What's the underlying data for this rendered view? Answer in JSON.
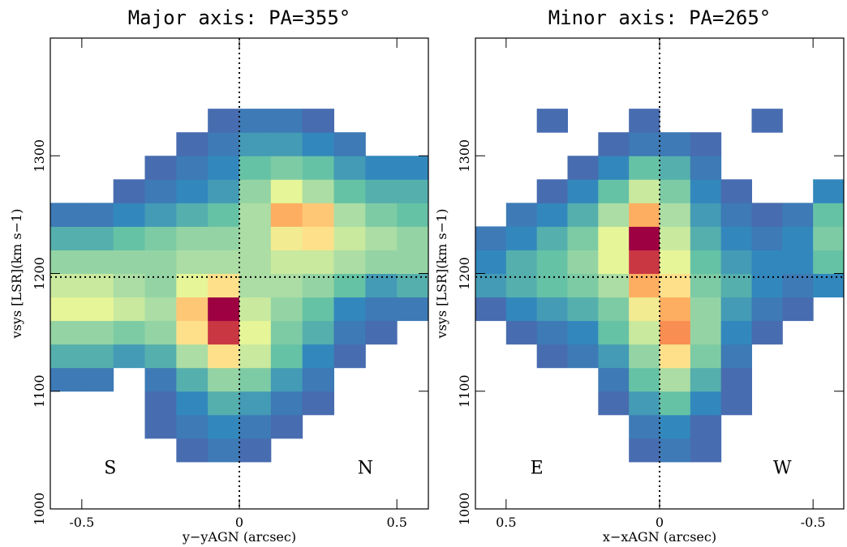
{
  "chart_data": [
    {
      "type": "heatmap",
      "title": "Major axis: PA=355°",
      "xlabel": "y−yAGN (arcsec)",
      "ylabel": "vsys [LSR](km s−1)",
      "xlim": [
        -0.6,
        0.6
      ],
      "ylim": [
        1000,
        1400
      ],
      "xticks": [
        -0.5,
        0,
        0.5
      ],
      "yticks": [
        1000,
        1100,
        1200,
        1300
      ],
      "colormap": "Spectral_r",
      "vlines": [
        0
      ],
      "hlines": [
        1197
      ],
      "annotations": [
        {
          "text": "S",
          "x": -0.41,
          "y": 1030
        },
        {
          "text": "N",
          "x": 0.4,
          "y": 1030
        }
      ],
      "x_bins": [
        -0.6,
        -0.5,
        -0.4,
        -0.3,
        -0.2,
        -0.1,
        0,
        0.1,
        0.2,
        0.3,
        0.4,
        0.5,
        0.6
      ],
      "y_bins": [
        1040,
        1060,
        1080,
        1100,
        1120,
        1140,
        1160,
        1180,
        1200,
        1220,
        1240,
        1260,
        1280,
        1300,
        1320,
        1340
      ],
      "values": [
        [
          null,
          null,
          null,
          null,
          0.1,
          0.15,
          0.1,
          null,
          null,
          null,
          null,
          null
        ],
        [
          null,
          null,
          null,
          0.1,
          0.15,
          0.2,
          0.15,
          0.1,
          null,
          null,
          null,
          null
        ],
        [
          null,
          null,
          null,
          0.1,
          0.2,
          0.3,
          0.25,
          0.15,
          0.1,
          null,
          null,
          null
        ],
        [
          0.15,
          0.15,
          null,
          0.15,
          0.3,
          0.45,
          0.4,
          0.25,
          0.15,
          null,
          null,
          null
        ],
        [
          0.3,
          0.3,
          0.25,
          0.3,
          0.5,
          0.7,
          0.55,
          0.35,
          0.2,
          0.1,
          null,
          null
        ],
        [
          0.45,
          0.45,
          0.4,
          0.45,
          0.7,
          0.95,
          0.6,
          0.4,
          0.3,
          0.15,
          0.1,
          null
        ],
        [
          0.6,
          0.6,
          0.55,
          0.5,
          0.75,
          1.0,
          0.55,
          0.45,
          0.35,
          0.2,
          0.15,
          0.15
        ],
        [
          0.55,
          0.55,
          0.5,
          0.45,
          0.6,
          0.7,
          0.5,
          0.5,
          0.45,
          0.35,
          0.25,
          0.3
        ],
        [
          0.45,
          0.45,
          0.45,
          0.45,
          0.5,
          0.5,
          0.5,
          0.55,
          0.55,
          0.5,
          0.45,
          0.45
        ],
        [
          0.3,
          0.3,
          0.35,
          0.4,
          0.45,
          0.45,
          0.5,
          0.65,
          0.7,
          0.55,
          0.5,
          0.45
        ],
        [
          0.15,
          0.15,
          0.2,
          0.25,
          0.3,
          0.35,
          0.5,
          0.8,
          0.75,
          0.5,
          0.4,
          0.35
        ],
        [
          null,
          null,
          0.1,
          0.15,
          0.2,
          0.25,
          0.45,
          0.6,
          0.5,
          0.35,
          0.3,
          0.3
        ],
        [
          null,
          null,
          null,
          0.1,
          0.15,
          0.2,
          0.35,
          0.4,
          0.35,
          0.25,
          0.2,
          0.2
        ],
        [
          null,
          null,
          null,
          null,
          0.1,
          0.15,
          0.25,
          0.25,
          0.2,
          0.15,
          null,
          null
        ],
        [
          null,
          null,
          null,
          null,
          null,
          0.1,
          0.15,
          0.15,
          0.1,
          null,
          null,
          null
        ]
      ]
    },
    {
      "type": "heatmap",
      "title": "Minor axis: PA=265°",
      "xlabel": "x−xAGN (arcsec)",
      "ylabel": "vsys [LSR](km s−1)",
      "xlim": [
        0.6,
        -0.6
      ],
      "ylim": [
        1000,
        1400
      ],
      "xticks": [
        0.5,
        0,
        -0.5
      ],
      "yticks": [
        1000,
        1100,
        1200,
        1300
      ],
      "colormap": "Spectral_r",
      "vlines": [
        0
      ],
      "hlines": [
        1197
      ],
      "annotations": [
        {
          "text": "E",
          "x": 0.4,
          "y": 1030
        },
        {
          "text": "W",
          "x": -0.4,
          "y": 1030
        }
      ],
      "x_bins": [
        0.6,
        0.5,
        0.4,
        0.3,
        0.2,
        0.1,
        0,
        -0.1,
        -0.2,
        -0.3,
        -0.4,
        -0.5,
        -0.6
      ],
      "y_bins": [
        1040,
        1060,
        1080,
        1100,
        1120,
        1140,
        1160,
        1180,
        1200,
        1220,
        1240,
        1260,
        1280,
        1300,
        1320,
        1340
      ],
      "values": [
        [
          null,
          null,
          null,
          null,
          null,
          0.1,
          0.15,
          0.1,
          null,
          null,
          null,
          null
        ],
        [
          null,
          null,
          null,
          null,
          null,
          0.15,
          0.2,
          0.1,
          null,
          null,
          null,
          null
        ],
        [
          null,
          null,
          null,
          null,
          0.1,
          0.25,
          0.35,
          0.2,
          0.1,
          null,
          null,
          null
        ],
        [
          null,
          null,
          null,
          null,
          0.15,
          0.35,
          0.5,
          0.3,
          0.1,
          null,
          null,
          null
        ],
        [
          null,
          null,
          0.1,
          0.15,
          0.25,
          0.45,
          0.7,
          0.4,
          0.15,
          null,
          null,
          null
        ],
        [
          null,
          0.1,
          0.15,
          0.2,
          0.35,
          0.55,
          0.85,
          0.45,
          0.2,
          0.1,
          null,
          null
        ],
        [
          0.1,
          0.2,
          0.25,
          0.3,
          0.4,
          0.65,
          0.8,
          0.45,
          0.25,
          0.15,
          0.1,
          null
        ],
        [
          0.25,
          0.3,
          0.35,
          0.4,
          0.5,
          0.8,
          0.7,
          0.4,
          0.3,
          0.2,
          0.15,
          0.2
        ],
        [
          0.2,
          0.3,
          0.35,
          0.45,
          0.6,
          0.95,
          0.6,
          0.35,
          0.25,
          0.2,
          0.2,
          0.35
        ],
        [
          0.15,
          0.2,
          0.3,
          0.4,
          0.6,
          1.0,
          0.55,
          0.3,
          0.2,
          0.15,
          0.2,
          0.4
        ],
        [
          null,
          0.15,
          0.2,
          0.3,
          0.5,
          0.8,
          0.5,
          0.25,
          0.15,
          0.1,
          0.15,
          0.35
        ],
        [
          null,
          null,
          0.1,
          0.2,
          0.35,
          0.55,
          0.4,
          0.2,
          0.1,
          null,
          null,
          0.2
        ],
        [
          null,
          null,
          null,
          0.1,
          0.2,
          0.35,
          0.3,
          0.15,
          null,
          null,
          null,
          null
        ],
        [
          null,
          null,
          null,
          null,
          0.1,
          0.15,
          0.15,
          0.1,
          null,
          null,
          null,
          null
        ],
        [
          null,
          null,
          0.1,
          null,
          null,
          0.1,
          null,
          null,
          null,
          0.1,
          null,
          null
        ]
      ]
    }
  ]
}
